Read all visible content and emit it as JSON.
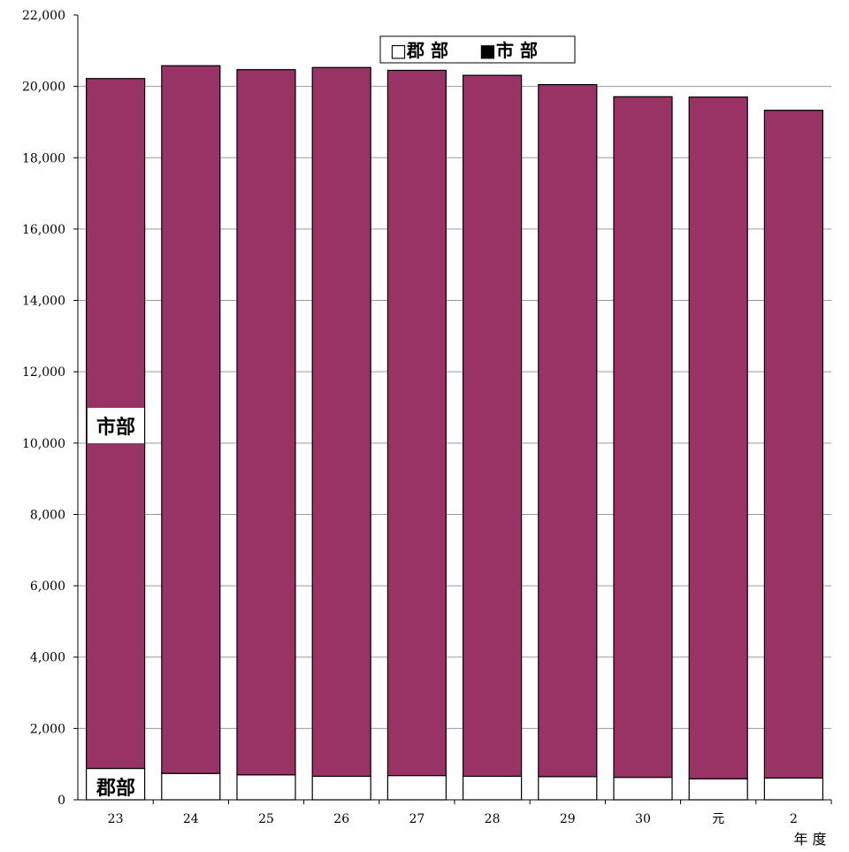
{
  "chart_data": {
    "type": "bar",
    "stacked": true,
    "categories": [
      "23",
      "24",
      "25",
      "26",
      "27",
      "28",
      "29",
      "30",
      "元",
      "2"
    ],
    "series": [
      {
        "name": "郡 部",
        "color": "#ffffff",
        "values": [
          880,
          740,
          700,
          660,
          680,
          660,
          650,
          630,
          590,
          610
        ]
      },
      {
        "name": "市 部",
        "color": "#993366",
        "values": [
          19340,
          19840,
          19770,
          19870,
          19770,
          19650,
          19400,
          19080,
          19110,
          18720
        ]
      }
    ],
    "ylim": [
      0,
      22000
    ],
    "yticks": [
      0,
      2000,
      4000,
      6000,
      8000,
      10000,
      12000,
      14000,
      16000,
      18000,
      20000,
      22000
    ],
    "ytick_labels": [
      "0",
      "2,000",
      "4,000",
      "6,000",
      "8,000",
      "10,000",
      "12,000",
      "14,000",
      "16,000",
      "18,000",
      "20,000",
      "22,000"
    ],
    "xlabel": "年 度",
    "grid": true,
    "legend": {
      "placement": "top-center",
      "entries": [
        {
          "marker": "□",
          "label": "郡 部"
        },
        {
          "marker": "■",
          "label": "市 部"
        }
      ]
    },
    "annotations": {
      "city_label": "市部",
      "county_label": "郡部"
    }
  }
}
